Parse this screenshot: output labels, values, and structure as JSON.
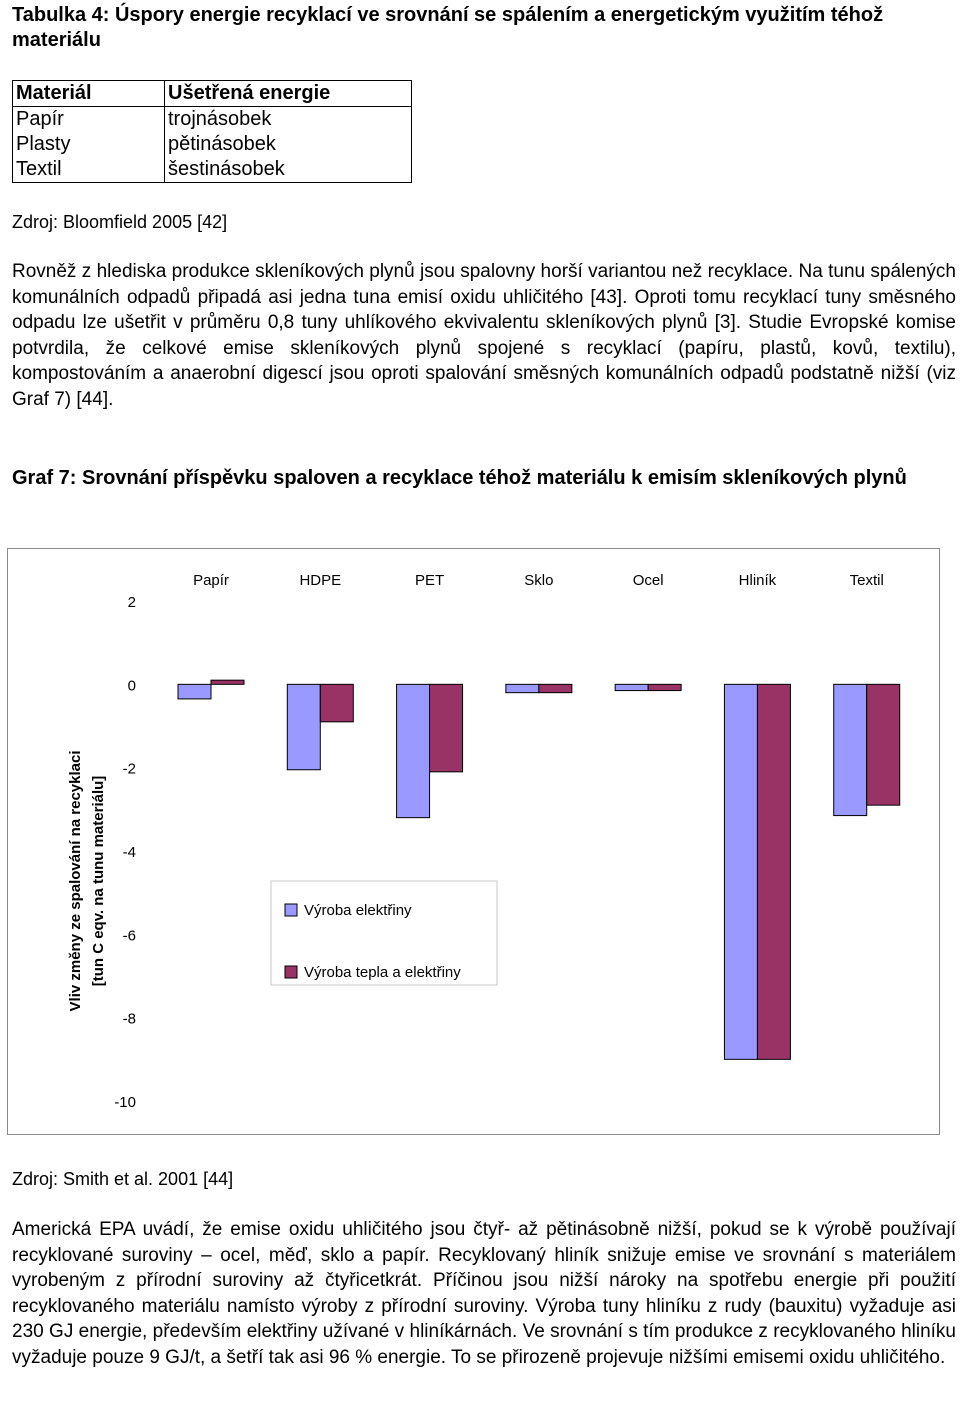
{
  "table": {
    "title": "Tabulka 4: Úspory energie recyklací ve srovnání se spálením a energetickým využitím téhož materiálu",
    "headers": [
      "Materiál",
      "Ušetřená energie"
    ],
    "rows": [
      [
        "Papír",
        "trojnásobek"
      ],
      [
        "Plasty",
        "pětinásobek"
      ],
      [
        "Textil",
        "šestinásobek"
      ]
    ],
    "source": "Zdroj: Bloomfield 2005 [42]"
  },
  "paragraph1": "Rovněž z hlediska produkce skleníkových plynů jsou spalovny horší variantou než recyklace. Na tunu spálených komunálních odpadů připadá asi jedna tuna emisí oxidu uhličitého [43]. Oproti tomu recyklací tuny směsného odpadu lze ušetřit v průměru 0,8 tuny uhlíkového ekvivalentu skleníkových plynů [3]. Studie Evropské komise potvrdila, že celkové emise skleníkových plynů spojené s recyklací (papíru, plastů, kovů, textilu), kompostováním a anaerobní digescí jsou oproti spalování směsných komunálních odpadů podstatně nižší (viz Graf 7) [44].",
  "graph_title": "Graf 7: Srovnání příspěvku spaloven a recyklace téhož materiálu k emisím skleníkových plynů",
  "chart_data": {
    "type": "bar",
    "title": "",
    "categories": [
      "Papír",
      "HDPE",
      "PET",
      "Sklo",
      "Ocel",
      "Hliník",
      "Textil"
    ],
    "series": [
      {
        "name": "Výroba elektřiny",
        "values": [
          -0.35,
          -2.05,
          -3.2,
          -0.2,
          -0.15,
          -9.0,
          -3.15
        ]
      },
      {
        "name": "Výroba tepla a elektřiny",
        "values": [
          0.1,
          -0.9,
          -2.1,
          -0.2,
          -0.15,
          -9.0,
          -2.9
        ]
      }
    ],
    "ylabel": "Vliv změny ze spalování na recyklaci [tun C eqv. na tunu materiálu]",
    "ylim": [
      -10,
      2
    ],
    "yticks": [
      2,
      0,
      -2,
      -4,
      -6,
      -8,
      -10
    ],
    "colors": [
      "#9999ff",
      "#993366"
    ],
    "grid": false,
    "legend": "inside-center-left"
  },
  "graph_source": "Zdroj: Smith et al. 2001 [44]",
  "paragraph2": "Americká EPA uvádí, že emise oxidu uhličitého jsou čtyř- až pětinásobně nižší, pokud se k výrobě používají recyklované suroviny – ocel, měď, sklo a papír. Recyklovaný hliník snižuje emise ve srovnání s materiálem vyrobeným z přírodní suroviny až čtyřicetkrát. Příčinou jsou nižší nároky na spotřebu energie při použití recyklovaného materiálu namísto výroby z přírodní suroviny. Výroba tuny hliníku z rudy (bauxitu) vyžaduje asi 230 GJ energie, především elektřiny užívané v hliníkárnách. Ve srovnání s tím produkce z recyklovaného hliníku vyžaduje pouze 9 GJ/t, a šetří tak asi 96 % energie. To se přirozeně projevuje nižšími emisemi oxidu uhličitého."
}
